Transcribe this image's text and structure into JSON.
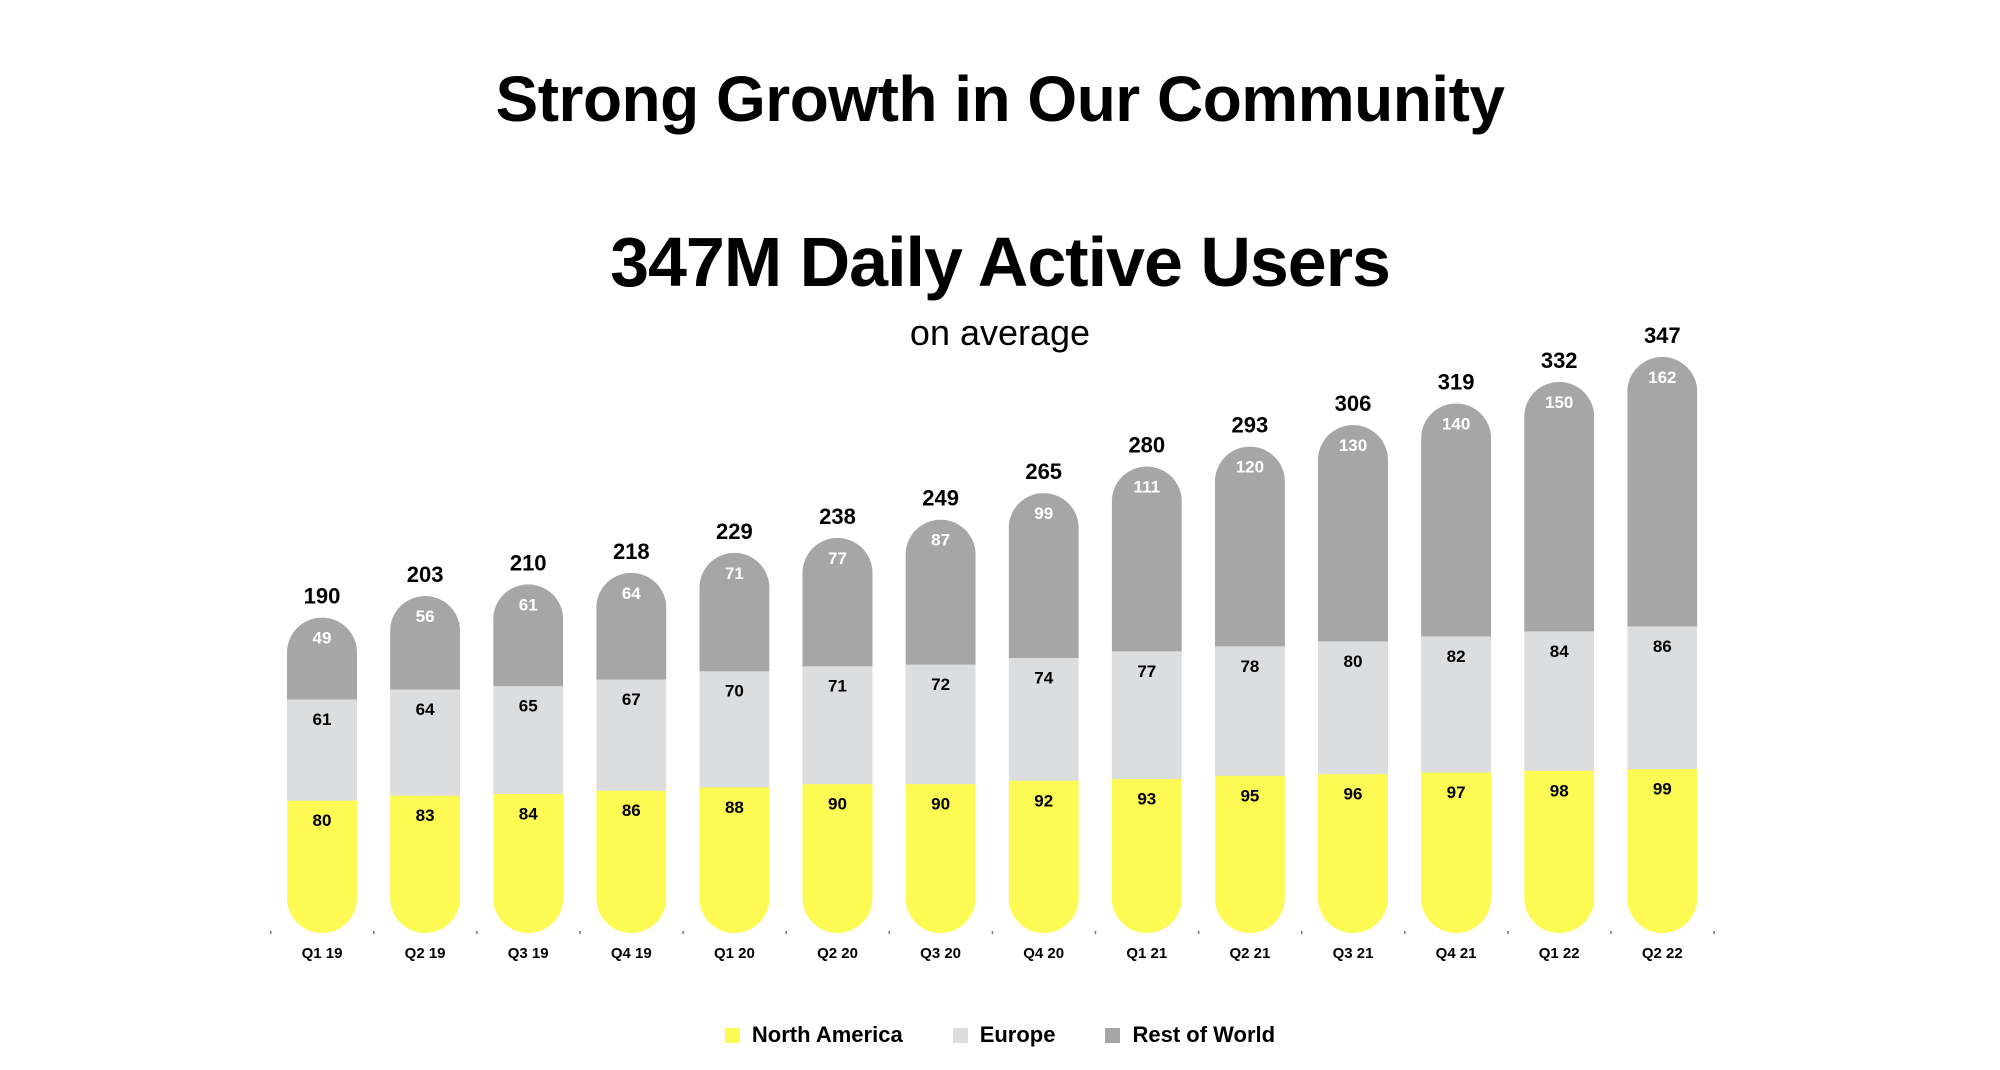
{
  "header": {
    "title": "Strong Growth in Our Community",
    "headline": "347M Daily Active Users",
    "subtitle": "on average"
  },
  "colors": {
    "north_america": "#fdfa53",
    "europe": "#dcdddf",
    "rest_of_world": "#a6a6a6",
    "label_dark": "#000000",
    "label_light": "#ffffff"
  },
  "legend": [
    {
      "label": "North America",
      "color": "#fdfa53"
    },
    {
      "label": "Europe",
      "color": "#dcdddf"
    },
    {
      "label": "Rest of World",
      "color": "#a6a6a6"
    }
  ],
  "chart_data": {
    "type": "bar",
    "stacked": true,
    "title": "347M Daily Active Users",
    "subtitle": "on average",
    "xlabel": "",
    "ylabel": "",
    "units": "millions",
    "ylim": [
      0,
      347
    ],
    "grid": false,
    "legend_position": "bottom-center",
    "categories": [
      "Q1 19",
      "Q2 19",
      "Q3 19",
      "Q4 19",
      "Q1 20",
      "Q2 20",
      "Q3 20",
      "Q4 20",
      "Q1 21",
      "Q2 21",
      "Q3 21",
      "Q4 21",
      "Q1 22",
      "Q2 22"
    ],
    "series": [
      {
        "name": "North America",
        "values": [
          80,
          83,
          84,
          86,
          88,
          90,
          90,
          92,
          93,
          95,
          96,
          97,
          98,
          99
        ]
      },
      {
        "name": "Europe",
        "values": [
          61,
          64,
          65,
          67,
          70,
          71,
          72,
          74,
          77,
          78,
          80,
          82,
          84,
          86
        ]
      },
      {
        "name": "Rest of World",
        "values": [
          49,
          56,
          61,
          64,
          71,
          77,
          87,
          99,
          111,
          120,
          130,
          140,
          150,
          162
        ]
      }
    ],
    "totals": [
      190,
      203,
      210,
      218,
      229,
      238,
      249,
      265,
      280,
      293,
      306,
      319,
      332,
      347
    ]
  }
}
